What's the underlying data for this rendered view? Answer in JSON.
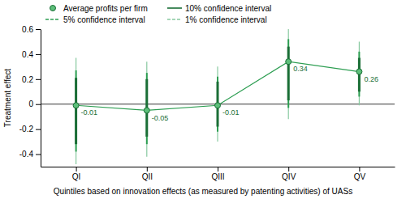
{
  "chart_data": {
    "type": "errorbar",
    "xlabel": "Quintiles based on innovation effects (as measured by patenting activities) of UASs",
    "ylabel": "Treatment effect",
    "categories": [
      "QI",
      "QII",
      "QIII",
      "QIV",
      "QV"
    ],
    "series": [
      {
        "name": "Average profits per firm",
        "type": "line",
        "marker": "circle",
        "color": "#5dbf7a",
        "values": [
          -0.01,
          -0.05,
          -0.01,
          0.34,
          0.26
        ]
      },
      {
        "name": "10% confidence interval",
        "type": "interval",
        "line_style": "solid",
        "color": "#1a6e36",
        "low": [
          -0.32,
          -0.26,
          -0.18,
          0.03,
          0.1
        ],
        "high": [
          0.21,
          0.2,
          0.18,
          0.46,
          0.37
        ]
      },
      {
        "name": "5% confidence interval",
        "type": "interval",
        "line_style": "dashed",
        "color": "#2d9e52",
        "low": [
          -0.38,
          -0.32,
          -0.22,
          -0.03,
          0.06
        ],
        "high": [
          0.27,
          0.25,
          0.22,
          0.52,
          0.42
        ]
      },
      {
        "name": "1% confidence interval",
        "type": "interval",
        "line_style": "dashed",
        "color": "#88c9a0",
        "low": [
          -0.48,
          -0.42,
          -0.3,
          -0.12,
          -0.01
        ],
        "high": [
          0.37,
          0.34,
          0.3,
          0.6,
          0.5
        ]
      }
    ],
    "ylim": [
      -0.5,
      0.6
    ],
    "yticks": [
      -0.4,
      -0.2,
      0,
      0.2,
      0.4,
      0.6
    ],
    "data_labels": true,
    "legend": "upper left",
    "grid": false
  }
}
